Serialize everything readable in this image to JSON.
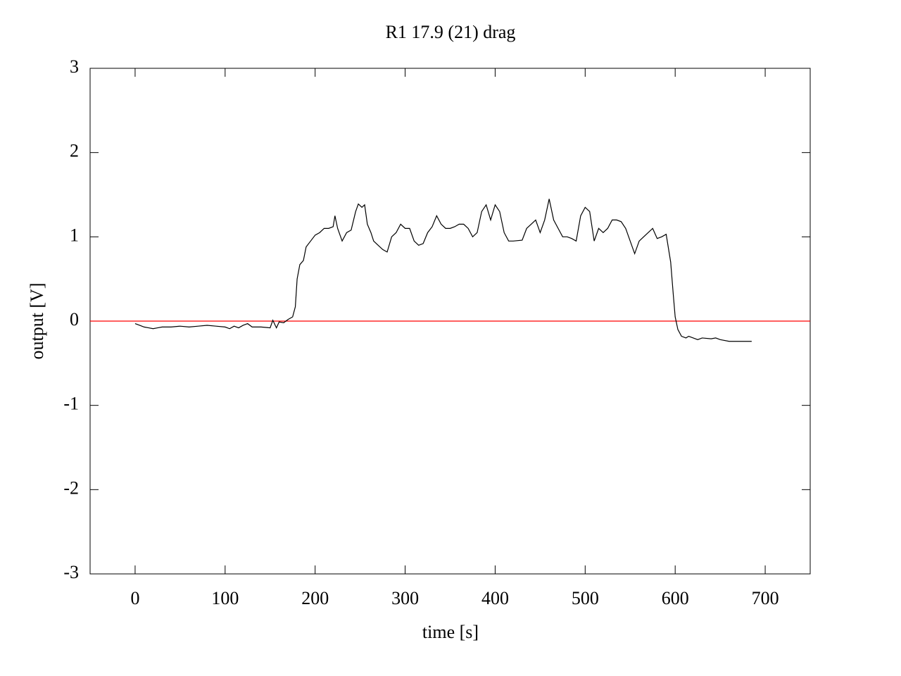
{
  "chart_data": {
    "type": "line",
    "title": "R1 17.9 (21) drag",
    "x_label": "time [s]",
    "y_label": "output [V]",
    "xlim": [
      -50,
      750
    ],
    "ylim": [
      -3,
      3
    ],
    "xticks": [
      0,
      100,
      200,
      300,
      400,
      500,
      600,
      700
    ],
    "yticks": [
      -3,
      -2,
      -1,
      0,
      1,
      2,
      3
    ],
    "grid": false,
    "series": [
      {
        "color": "#ff0000",
        "x": [
          -50,
          750
        ],
        "values": [
          0,
          0
        ]
      },
      {
        "color": "#000000",
        "x": [
          0,
          5,
          10,
          15,
          20,
          25,
          30,
          40,
          50,
          60,
          70,
          80,
          90,
          100,
          105,
          110,
          115,
          120,
          125,
          130,
          140,
          150,
          153,
          157,
          160,
          165,
          170,
          175,
          178,
          180,
          183,
          187,
          190,
          195,
          200,
          205,
          210,
          215,
          220,
          222,
          225,
          230,
          235,
          240,
          245,
          248,
          252,
          255,
          258,
          262,
          265,
          270,
          275,
          280,
          285,
          290,
          295,
          300,
          305,
          310,
          315,
          320,
          325,
          330,
          335,
          340,
          345,
          350,
          355,
          360,
          365,
          370,
          375,
          380,
          385,
          390,
          395,
          400,
          405,
          410,
          415,
          420,
          430,
          435,
          440,
          445,
          450,
          455,
          460,
          465,
          470,
          475,
          480,
          485,
          490,
          495,
          500,
          505,
          510,
          515,
          520,
          525,
          530,
          535,
          540,
          545,
          550,
          555,
          560,
          565,
          570,
          575,
          580,
          585,
          590,
          595,
          598,
          600,
          603,
          607,
          612,
          615,
          620,
          625,
          630,
          640,
          645,
          650,
          660,
          670,
          680,
          685
        ],
        "values": [
          -0.03,
          -0.05,
          -0.07,
          -0.08,
          -0.09,
          -0.08,
          -0.07,
          -0.07,
          -0.06,
          -0.07,
          -0.06,
          -0.05,
          -0.06,
          -0.07,
          -0.09,
          -0.06,
          -0.08,
          -0.05,
          -0.03,
          -0.07,
          -0.07,
          -0.08,
          0.01,
          -0.08,
          -0.01,
          -0.02,
          0.02,
          0.05,
          0.17,
          0.5,
          0.67,
          0.72,
          0.88,
          0.95,
          1.02,
          1.05,
          1.1,
          1.1,
          1.12,
          1.25,
          1.1,
          0.95,
          1.05,
          1.08,
          1.3,
          1.39,
          1.35,
          1.38,
          1.15,
          1.05,
          0.95,
          0.9,
          0.85,
          0.82,
          1.0,
          1.05,
          1.15,
          1.1,
          1.1,
          0.95,
          0.9,
          0.92,
          1.05,
          1.12,
          1.25,
          1.15,
          1.1,
          1.1,
          1.12,
          1.15,
          1.15,
          1.1,
          1.0,
          1.05,
          1.3,
          1.38,
          1.2,
          1.38,
          1.3,
          1.05,
          0.95,
          0.95,
          0.96,
          1.1,
          1.15,
          1.2,
          1.05,
          1.2,
          1.45,
          1.2,
          1.1,
          1.0,
          1.0,
          0.98,
          0.95,
          1.25,
          1.35,
          1.3,
          0.95,
          1.1,
          1.05,
          1.1,
          1.2,
          1.2,
          1.18,
          1.1,
          0.95,
          0.8,
          0.95,
          1.0,
          1.05,
          1.1,
          0.98,
          1.0,
          1.03,
          0.7,
          0.3,
          0.05,
          -0.1,
          -0.18,
          -0.2,
          -0.18,
          -0.2,
          -0.22,
          -0.2,
          -0.21,
          -0.2,
          -0.22,
          -0.24,
          -0.24,
          -0.24,
          -0.24
        ]
      }
    ]
  }
}
